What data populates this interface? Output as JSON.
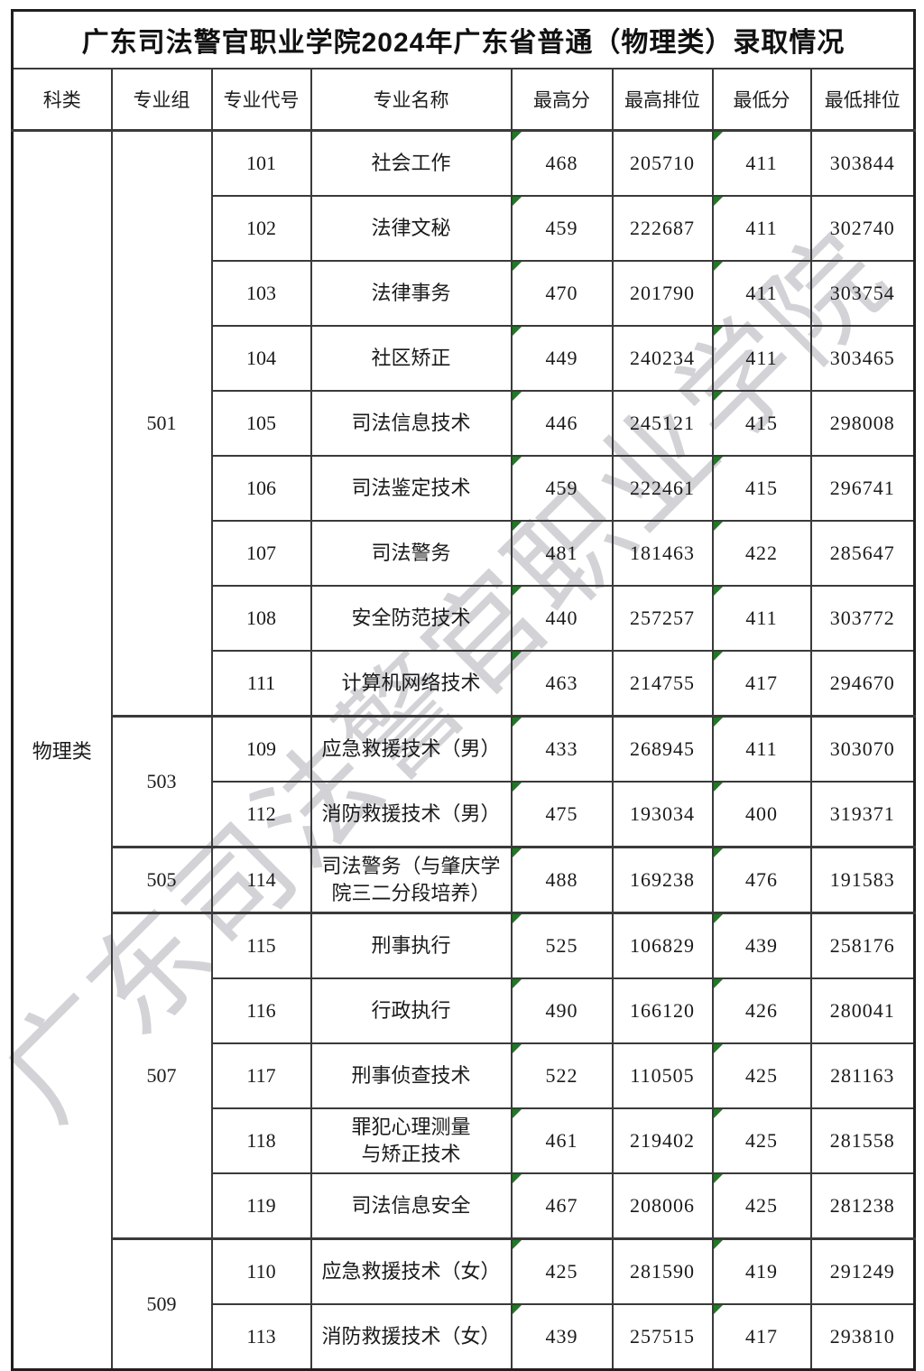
{
  "title": "广东司法警官职业学院2024年广东省普通（物理类）录取情况",
  "watermark_text": "广东司法警官职业学院",
  "colors": {
    "flag_triangle": "#1e7b23",
    "border": "#3a3a3a",
    "outer_border": "#1f1f1f",
    "text": "#1a1a1a",
    "watermark": "#a9a9b0",
    "background": "#ffffff"
  },
  "table": {
    "columns": [
      "科类",
      "专业组",
      "专业代号",
      "专业名称",
      "最高分",
      "最高排位",
      "最低分",
      "最低排位"
    ],
    "subject_category": "物理类",
    "flag_icon_columns": [
      "最高分",
      "最低分"
    ],
    "groups": [
      {
        "group_code": "501",
        "majors": [
          {
            "code": "101",
            "name": "社会工作",
            "max_score": "468",
            "max_rank": "205710",
            "min_score": "411",
            "min_rank": "303844"
          },
          {
            "code": "102",
            "name": "法律文秘",
            "max_score": "459",
            "max_rank": "222687",
            "min_score": "411",
            "min_rank": "302740"
          },
          {
            "code": "103",
            "name": "法律事务",
            "max_score": "470",
            "max_rank": "201790",
            "min_score": "411",
            "min_rank": "303754"
          },
          {
            "code": "104",
            "name": "社区矫正",
            "max_score": "449",
            "max_rank": "240234",
            "min_score": "411",
            "min_rank": "303465"
          },
          {
            "code": "105",
            "name": "司法信息技术",
            "max_score": "446",
            "max_rank": "245121",
            "min_score": "415",
            "min_rank": "298008"
          },
          {
            "code": "106",
            "name": "司法鉴定技术",
            "max_score": "459",
            "max_rank": "222461",
            "min_score": "415",
            "min_rank": "296741"
          },
          {
            "code": "107",
            "name": "司法警务",
            "max_score": "481",
            "max_rank": "181463",
            "min_score": "422",
            "min_rank": "285647"
          },
          {
            "code": "108",
            "name": "安全防范技术",
            "max_score": "440",
            "max_rank": "257257",
            "min_score": "411",
            "min_rank": "303772"
          },
          {
            "code": "111",
            "name": "计算机网络技术",
            "max_score": "463",
            "max_rank": "214755",
            "min_score": "417",
            "min_rank": "294670"
          }
        ]
      },
      {
        "group_code": "503",
        "majors": [
          {
            "code": "109",
            "name": "应急救援技术（男）",
            "max_score": "433",
            "max_rank": "268945",
            "min_score": "411",
            "min_rank": "303070"
          },
          {
            "code": "112",
            "name": "消防救援技术（男）",
            "max_score": "475",
            "max_rank": "193034",
            "min_score": "400",
            "min_rank": "319371"
          }
        ]
      },
      {
        "group_code": "505",
        "majors": [
          {
            "code": "114",
            "name": "司法警务（与肇庆学\n院三二分段培养）",
            "max_score": "488",
            "max_rank": "169238",
            "min_score": "476",
            "min_rank": "191583"
          }
        ]
      },
      {
        "group_code": "507",
        "majors": [
          {
            "code": "115",
            "name": "刑事执行",
            "max_score": "525",
            "max_rank": "106829",
            "min_score": "439",
            "min_rank": "258176"
          },
          {
            "code": "116",
            "name": "行政执行",
            "max_score": "490",
            "max_rank": "166120",
            "min_score": "426",
            "min_rank": "280041"
          },
          {
            "code": "117",
            "name": "刑事侦查技术",
            "max_score": "522",
            "max_rank": "110505",
            "min_score": "425",
            "min_rank": "281163"
          },
          {
            "code": "118",
            "name": "罪犯心理测量\n与矫正技术",
            "max_score": "461",
            "max_rank": "219402",
            "min_score": "425",
            "min_rank": "281558"
          },
          {
            "code": "119",
            "name": "司法信息安全",
            "max_score": "467",
            "max_rank": "208006",
            "min_score": "425",
            "min_rank": "281238"
          }
        ]
      },
      {
        "group_code": "509",
        "majors": [
          {
            "code": "110",
            "name": "应急救援技术（女）",
            "max_score": "425",
            "max_rank": "281590",
            "min_score": "419",
            "min_rank": "291249"
          },
          {
            "code": "113",
            "name": "消防救援技术（女）",
            "max_score": "439",
            "max_rank": "257515",
            "min_score": "417",
            "min_rank": "293810"
          }
        ]
      }
    ]
  }
}
